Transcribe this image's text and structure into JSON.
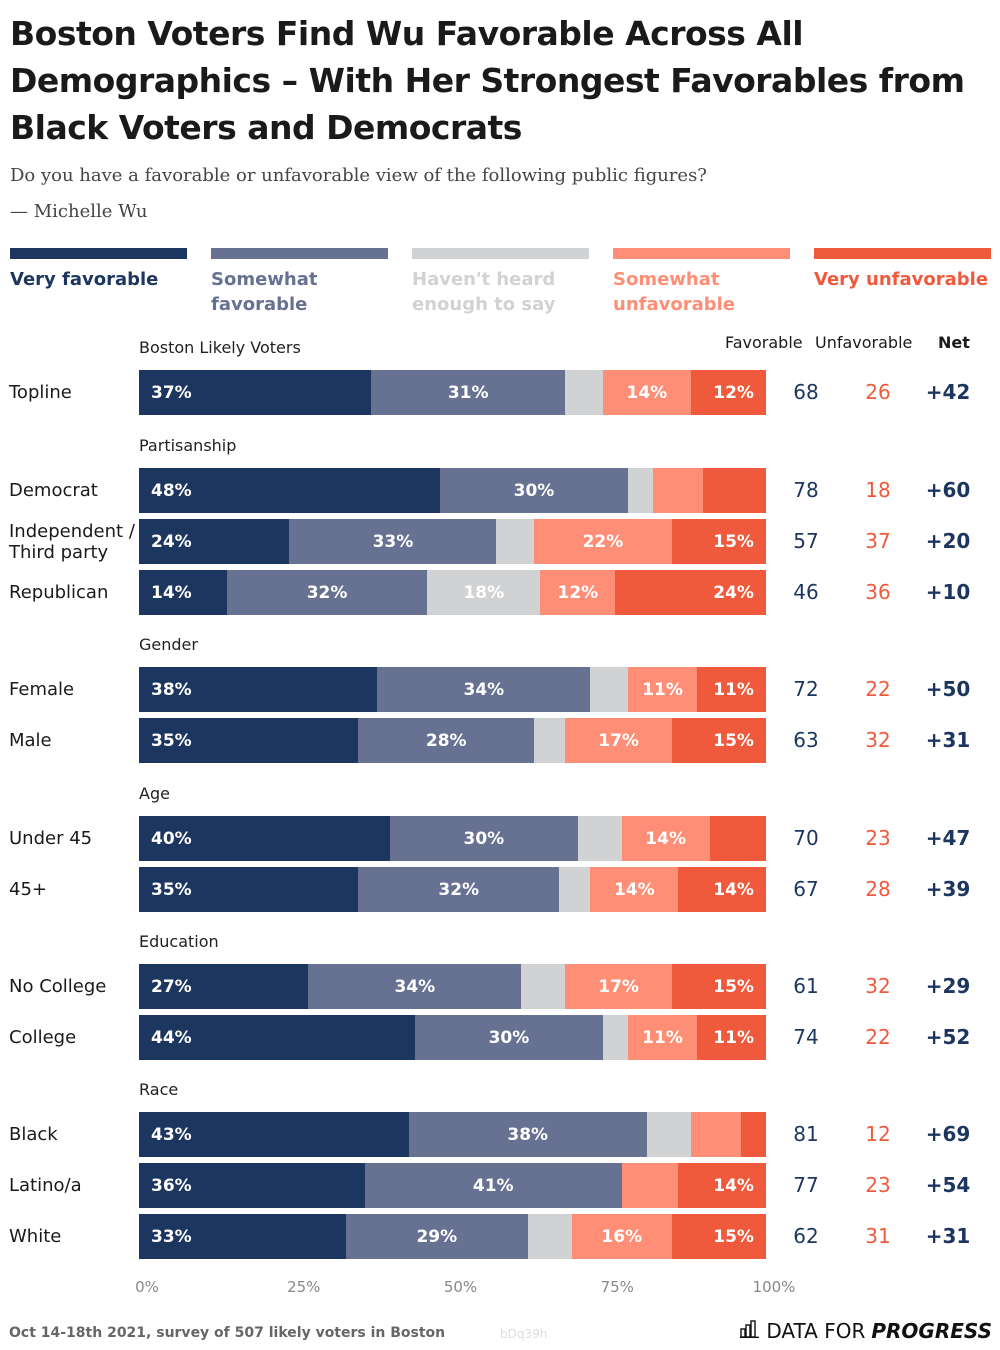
{
  "title": "Boston Voters Find Wu Favorable Across All Demographics – With Her Strongest Favorables from Black Voters and Democrats",
  "subtitle_question": "Do you have a favorable or unfavorable view of the following public figures?",
  "subtitle_figure": "— Michelle Wu",
  "column_headers": {
    "favorable": "Favorable",
    "unfavorable": "Unfavorable",
    "net": "Net"
  },
  "footer": "Oct 14-18th 2021, survey of 507 likely voters in Boston",
  "chart_code": "bDq39h",
  "brand": {
    "prefix": "DATA FOR",
    "bold": "PROGRESS",
    "icon": "bar-chart-icon"
  },
  "colors": {
    "very_favorable": "#1c365f",
    "somewhat_favorable": "#677292",
    "havent_heard": "#d1d2d4",
    "somewhat_unfavorable": "#fe8f76",
    "very_unfavorable": "#f05a3c",
    "favorable_text": "#1c365f",
    "unfavorable_text": "#f05a3c"
  },
  "chart_data": {
    "type": "bar",
    "orientation": "horizontal",
    "stacked": true,
    "title": "Boston Voters Find Wu Favorable Across All Demographics – With Her Strongest Favorables from Black Voters and Democrats",
    "xlabel": "",
    "ylabel": "",
    "xlim": [
      0,
      100
    ],
    "x_ticks": [
      "0%",
      "25%",
      "50%",
      "75%",
      "100%"
    ],
    "legend": [
      "Very favorable",
      "Somewhat favorable",
      "Haven't heard enough to say",
      "Somewhat unfavorable",
      "Very unfavorable"
    ],
    "legend_display": [
      [
        "Very favorable"
      ],
      [
        "Somewhat",
        "favorable"
      ],
      [
        "Haven't heard",
        "enough to say"
      ],
      [
        "Somewhat",
        "unfavorable"
      ],
      [
        "Very unfavorable"
      ]
    ],
    "legend_placement": "top",
    "groups": [
      {
        "name": "Boston Likely Voters",
        "rows": [
          {
            "label": "Topline",
            "values": [
              37,
              31,
              6,
              14,
              12
            ],
            "labels": [
              "37%",
              "31%",
              "",
              "14%",
              "12%"
            ],
            "favorable": "68",
            "unfavorable": "26",
            "net": "+42"
          }
        ]
      },
      {
        "name": "Partisanship",
        "rows": [
          {
            "label": "Democrat",
            "values": [
              48,
              30,
              4,
              8,
              10
            ],
            "labels": [
              "48%",
              "30%",
              "",
              "",
              ""
            ],
            "favorable": "78",
            "unfavorable": "18",
            "net": "+60"
          },
          {
            "label": "Independent / Third party",
            "values": [
              24,
              33,
              6,
              22,
              15
            ],
            "labels": [
              "24%",
              "33%",
              "",
              "22%",
              "15%"
            ],
            "favorable": "57",
            "unfavorable": "37",
            "net": "+20"
          },
          {
            "label": "Republican",
            "values": [
              14,
              32,
              18,
              12,
              24
            ],
            "labels": [
              "14%",
              "32%",
              "18%",
              "12%",
              "24%"
            ],
            "favorable": "46",
            "unfavorable": "36",
            "net": "+10"
          }
        ]
      },
      {
        "name": "Gender",
        "rows": [
          {
            "label": "Female",
            "values": [
              38,
              34,
              6,
              11,
              11
            ],
            "labels": [
              "38%",
              "34%",
              "",
              "11%",
              "11%"
            ],
            "favorable": "72",
            "unfavorable": "22",
            "net": "+50"
          },
          {
            "label": "Male",
            "values": [
              35,
              28,
              5,
              17,
              15
            ],
            "labels": [
              "35%",
              "28%",
              "",
              "17%",
              "15%"
            ],
            "favorable": "63",
            "unfavorable": "32",
            "net": "+31"
          }
        ]
      },
      {
        "name": "Age",
        "rows": [
          {
            "label": "Under 45",
            "values": [
              40,
              30,
              7,
              14,
              9
            ],
            "labels": [
              "40%",
              "30%",
              "",
              "14%",
              ""
            ],
            "favorable": "70",
            "unfavorable": "23",
            "net": "+47"
          },
          {
            "label": "45+",
            "values": [
              35,
              32,
              5,
              14,
              14
            ],
            "labels": [
              "35%",
              "32%",
              "",
              "14%",
              "14%"
            ],
            "favorable": "67",
            "unfavorable": "28",
            "net": "+39"
          }
        ]
      },
      {
        "name": "Education",
        "rows": [
          {
            "label": "No College",
            "values": [
              27,
              34,
              7,
              17,
              15
            ],
            "labels": [
              "27%",
              "34%",
              "",
              "17%",
              "15%"
            ],
            "favorable": "61",
            "unfavorable": "32",
            "net": "+29"
          },
          {
            "label": "College",
            "values": [
              44,
              30,
              4,
              11,
              11
            ],
            "labels": [
              "44%",
              "30%",
              "",
              "11%",
              "11%"
            ],
            "favorable": "74",
            "unfavorable": "22",
            "net": "+52"
          }
        ]
      },
      {
        "name": "Race",
        "rows": [
          {
            "label": "Black",
            "values": [
              43,
              38,
              7,
              8,
              4
            ],
            "labels": [
              "43%",
              "38%",
              "",
              "",
              ""
            ],
            "favorable": "81",
            "unfavorable": "12",
            "net": "+69"
          },
          {
            "label": "Latino/a",
            "values": [
              36,
              41,
              0,
              9,
              14
            ],
            "labels": [
              "36%",
              "41%",
              "",
              "",
              "14%"
            ],
            "favorable": "77",
            "unfavorable": "23",
            "net": "+54"
          },
          {
            "label": "White",
            "values": [
              33,
              29,
              7,
              16,
              15
            ],
            "labels": [
              "33%",
              "29%",
              "",
              "16%",
              "15%"
            ],
            "favorable": "62",
            "unfavorable": "31",
            "net": "+31"
          }
        ]
      }
    ]
  }
}
